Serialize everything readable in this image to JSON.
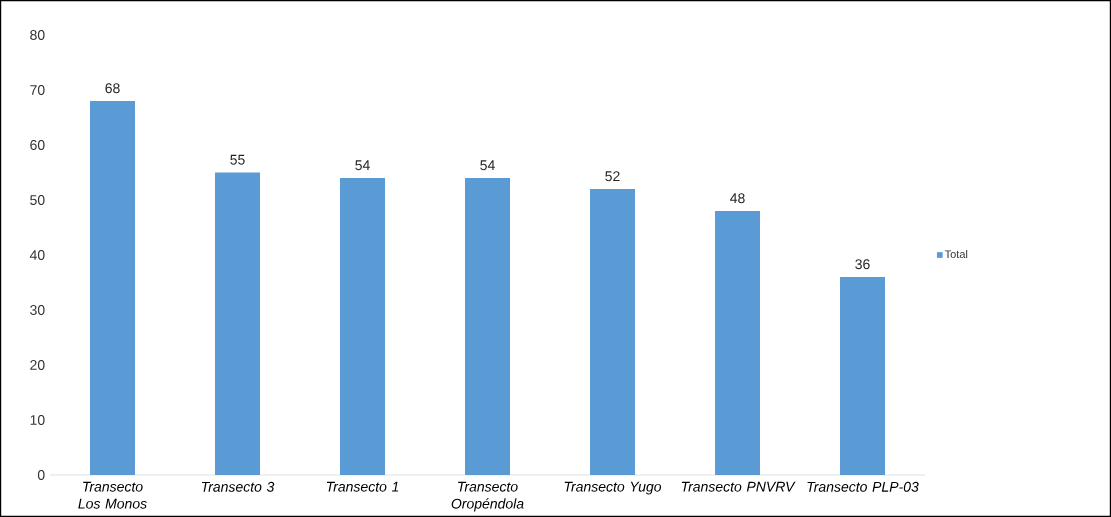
{
  "chart_data": {
    "type": "bar",
    "categories": [
      "Transecto Los Monos",
      "Transecto 3",
      "Transecto 1",
      "Transecto Oropéndola",
      "Transecto Yugo",
      "Transecto PNVRV",
      "Transecto PLP-03"
    ],
    "series": [
      {
        "name": "Total",
        "color": "#5b9bd5",
        "values": [
          68,
          55,
          54,
          54,
          52,
          48,
          36
        ]
      }
    ],
    "data_labels": true,
    "ylim": [
      0,
      80
    ],
    "yticks": [
      0,
      10,
      20,
      30,
      40,
      50,
      60,
      70,
      80
    ],
    "grid": false,
    "legend": "right"
  }
}
